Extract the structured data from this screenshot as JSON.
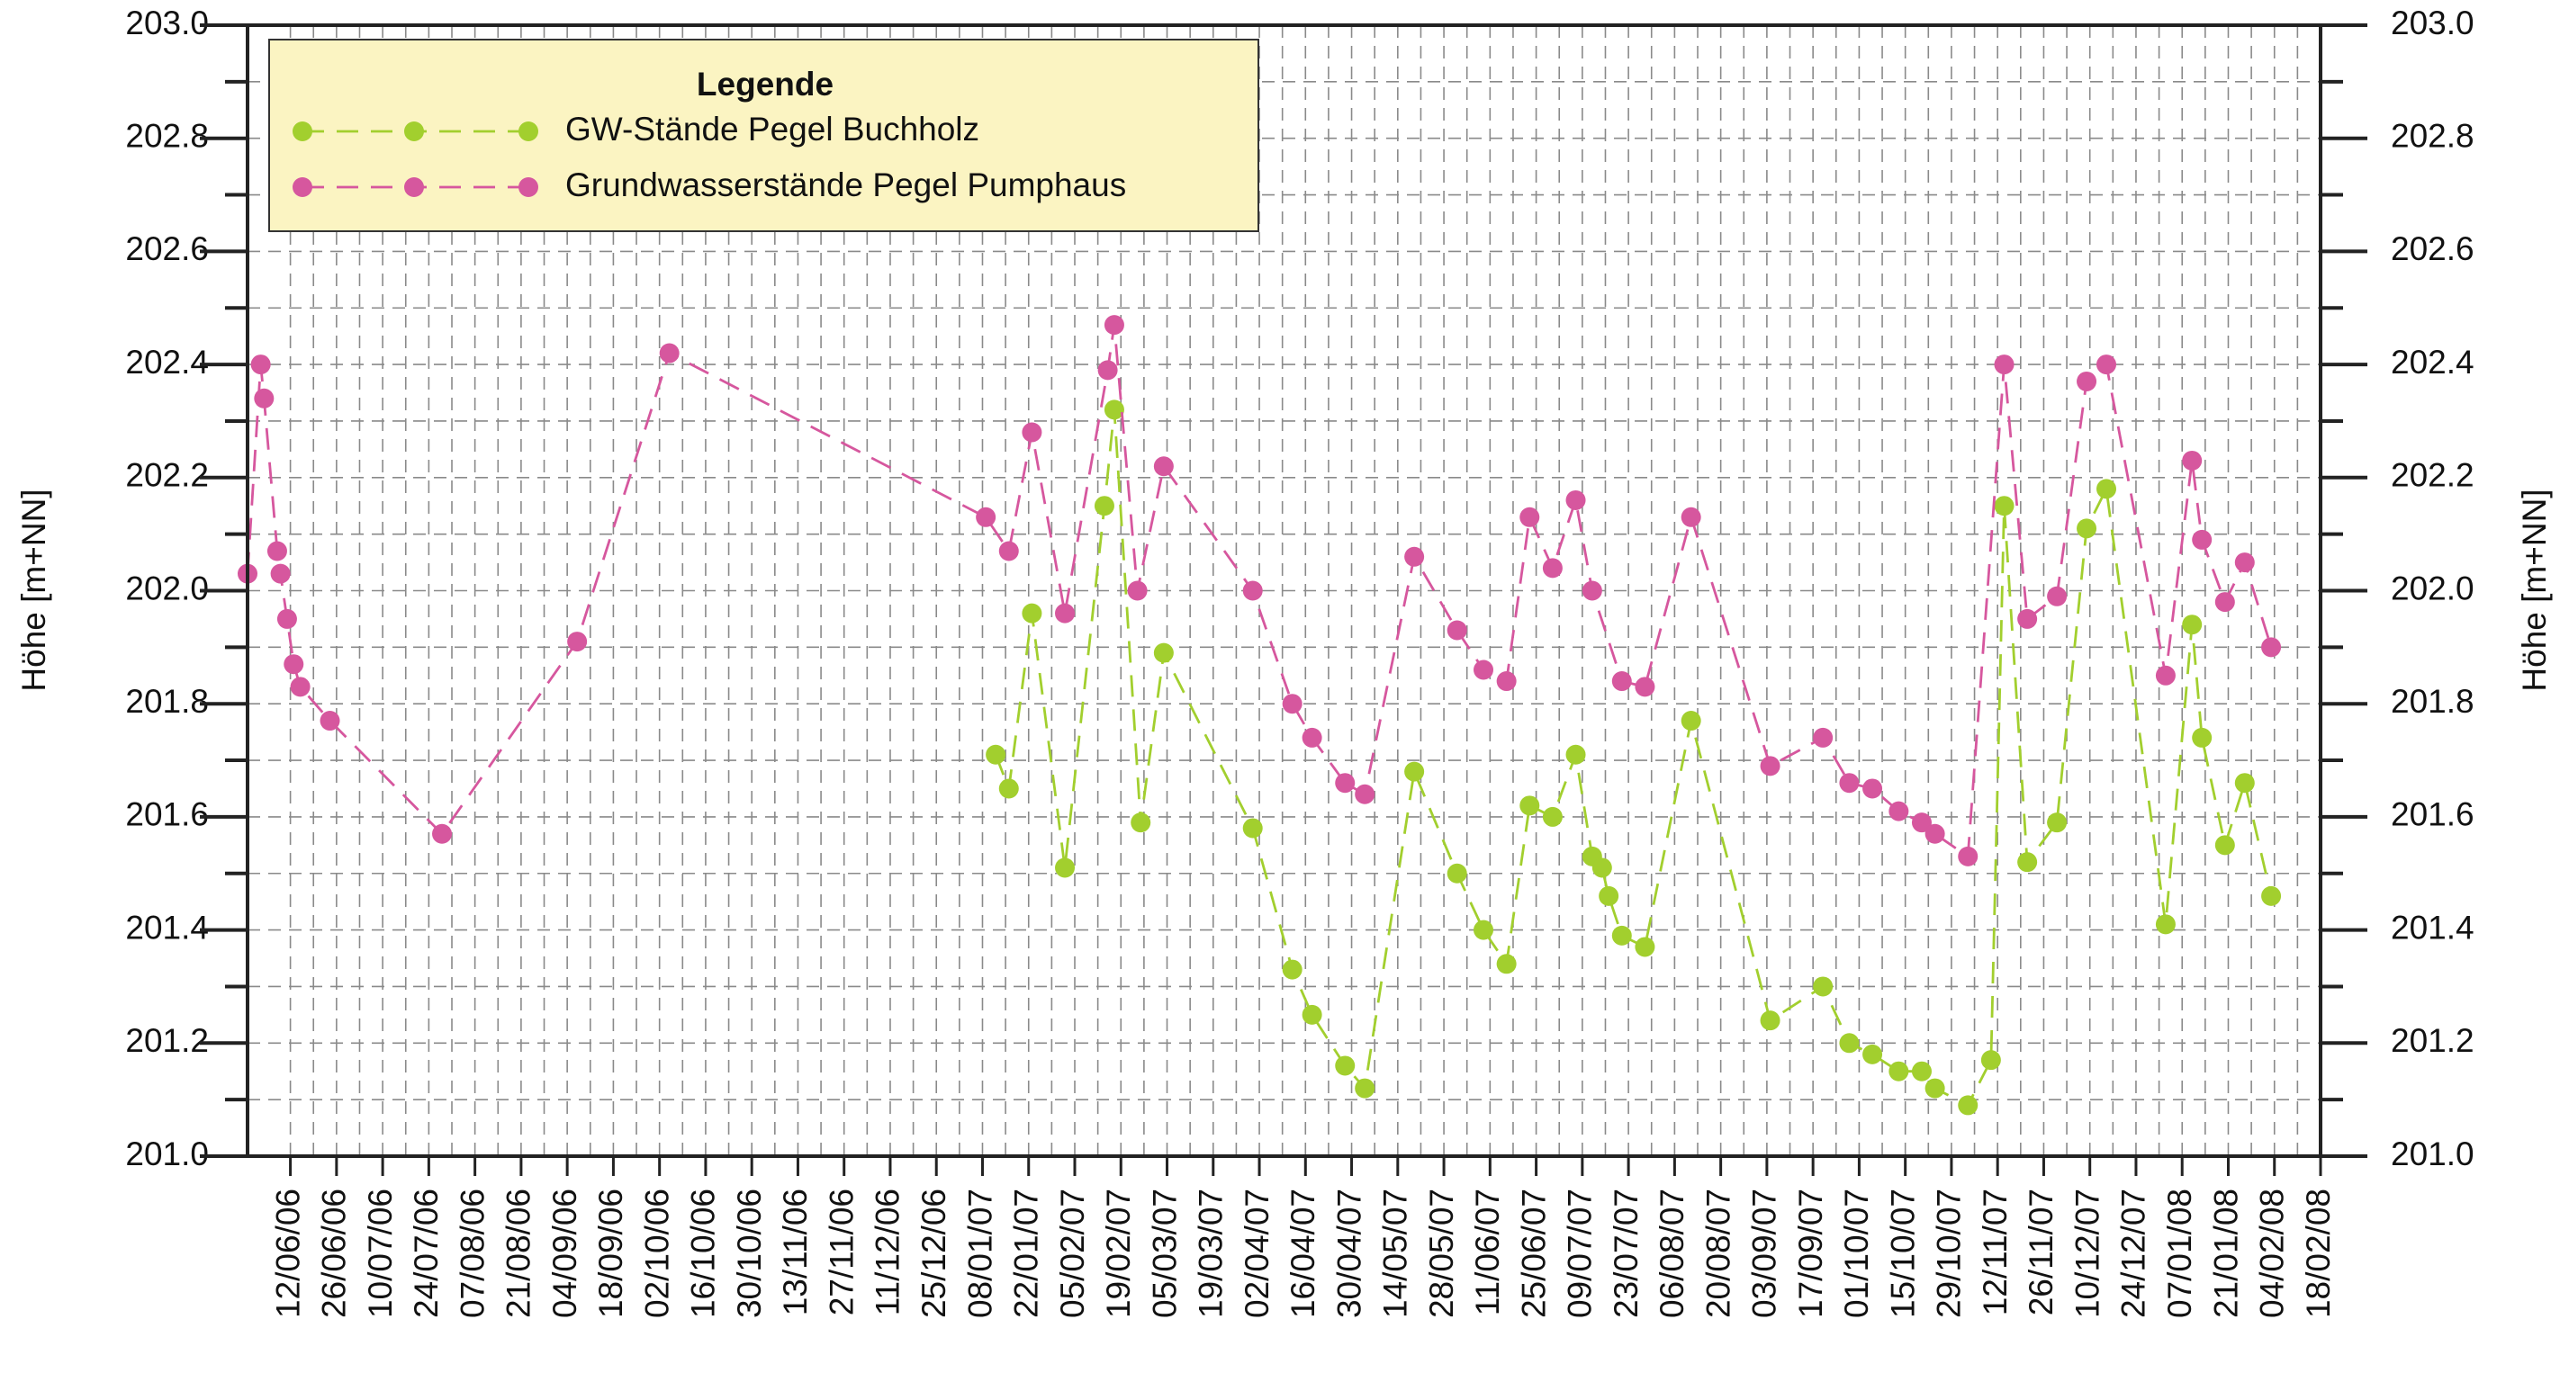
{
  "chart_data": {
    "type": "line",
    "legend_title": "Legende",
    "ylabel": "Höhe [m+NN]",
    "y2label": "Höhe [m+NN]",
    "xlim": [
      "30/05/06",
      "18/02/08"
    ],
    "xticks": [
      "12/06/06",
      "26/06/06",
      "10/07/06",
      "24/07/06",
      "07/08/06",
      "21/08/06",
      "04/09/06",
      "18/09/06",
      "02/10/06",
      "16/10/06",
      "30/10/06",
      "13/11/06",
      "27/11/06",
      "11/12/06",
      "25/12/06",
      "08/01/07",
      "22/01/07",
      "05/02/07",
      "19/02/07",
      "05/03/07",
      "19/03/07",
      "02/04/07",
      "16/04/07",
      "30/04/07",
      "14/05/07",
      "28/05/07",
      "11/06/07",
      "25/06/07",
      "09/07/07",
      "23/07/07",
      "06/08/07",
      "20/08/07",
      "03/09/07",
      "17/09/07",
      "01/10/07",
      "15/10/07",
      "29/10/07",
      "12/11/07",
      "26/11/07",
      "10/12/07",
      "24/12/07",
      "07/01/08",
      "21/01/08",
      "04/02/08",
      "18/02/08"
    ],
    "ylim": [
      201.0,
      203.0
    ],
    "yticks": [
      {
        "value": 201.0,
        "label": "201.0"
      },
      201.2,
      201.4,
      201.6,
      201.8,
      {
        "value": 202.0,
        "label": "202.0"
      },
      202.2,
      202.4,
      202.6,
      202.8,
      {
        "value": 203.0,
        "label": "203.0"
      }
    ],
    "y2lim": [
      201.0,
      203.0
    ],
    "y2ticks": [
      {
        "value": 201.0,
        "label": "201.0"
      },
      201.2,
      201.4,
      201.6,
      201.8,
      {
        "value": 202.0,
        "label": "202.0"
      },
      202.2,
      202.4,
      202.6,
      202.8,
      {
        "value": 203.0,
        "label": "203.0"
      }
    ],
    "grid": true,
    "legend": "upper left",
    "series": [
      {
        "name": "GW-Stände Pegel Buchholz",
        "color": "#a2cf2e",
        "x": [
          "12/01/07",
          "16/01/07",
          "23/01/07",
          "02/02/07",
          "14/02/07",
          "17/02/07",
          "25/02/07",
          "04/03/07",
          "31/03/07",
          "12/04/07",
          "18/04/07",
          "28/04/07",
          "04/05/07",
          "19/05/07",
          "01/06/07",
          "09/06/07",
          "16/06/07",
          "23/06/07",
          "30/06/07",
          "07/07/07",
          "12/07/07",
          "15/07/07",
          "17/07/07",
          "21/07/07",
          "28/07/07",
          "11/08/07",
          "04/09/07",
          "20/09/07",
          "28/09/07",
          "05/10/07",
          "13/10/07",
          "20/10/07",
          "24/10/07",
          "03/11/07",
          "10/11/07",
          "14/11/07",
          "21/11/07",
          "30/11/07",
          "09/12/07",
          "15/12/07",
          "02/01/08",
          "10/01/08",
          "13/01/08",
          "20/01/08",
          "26/01/08",
          "03/02/08"
        ],
        "values": [
          201.71,
          201.65,
          201.96,
          201.51,
          202.15,
          202.32,
          201.59,
          201.89,
          201.58,
          201.33,
          201.25,
          201.16,
          201.12,
          201.68,
          201.5,
          201.4,
          201.34,
          201.62,
          201.6,
          201.71,
          201.53,
          201.51,
          201.46,
          201.39,
          201.37,
          201.77,
          201.24,
          201.3,
          201.2,
          201.18,
          201.15,
          201.15,
          201.12,
          201.09,
          201.17,
          202.15,
          201.52,
          201.59,
          202.11,
          202.18,
          201.41,
          201.94,
          201.74,
          201.55,
          201.66,
          201.46
        ]
      },
      {
        "name": "Grundwasserstände Pegel Pumphaus",
        "color": "#d6579e",
        "x": [
          "30/05/06",
          "03/06/06",
          "04/06/06",
          "08/06/06",
          "09/06/06",
          "11/06/06",
          "13/06/06",
          "15/06/06",
          "24/06/06",
          "28/07/06",
          "07/09/06",
          "05/10/06",
          "09/01/07",
          "16/01/07",
          "23/01/07",
          "02/02/07",
          "15/02/07",
          "17/02/07",
          "24/02/07",
          "04/03/07",
          "31/03/07",
          "12/04/07",
          "18/04/07",
          "28/04/07",
          "04/05/07",
          "19/05/07",
          "01/06/07",
          "09/06/07",
          "16/06/07",
          "23/06/07",
          "30/06/07",
          "07/07/07",
          "12/07/07",
          "21/07/07",
          "28/07/07",
          "11/08/07",
          "04/09/07",
          "20/09/07",
          "28/09/07",
          "05/10/07",
          "13/10/07",
          "20/10/07",
          "24/10/07",
          "03/11/07",
          "14/11/07",
          "21/11/07",
          "30/11/07",
          "09/12/07",
          "15/12/07",
          "02/01/08",
          "10/01/08",
          "13/01/08",
          "20/01/08",
          "26/01/08",
          "03/02/08"
        ],
        "values": [
          202.03,
          202.4,
          202.34,
          202.07,
          202.03,
          201.95,
          201.87,
          201.83,
          201.77,
          201.57,
          201.91,
          202.42,
          202.13,
          202.07,
          202.28,
          201.96,
          202.39,
          202.47,
          202.0,
          202.22,
          202.0,
          201.8,
          201.74,
          201.66,
          201.64,
          202.06,
          201.93,
          201.86,
          201.84,
          202.13,
          202.04,
          202.16,
          202.0,
          201.84,
          201.83,
          202.13,
          201.69,
          201.74,
          201.66,
          201.65,
          201.61,
          201.59,
          201.57,
          201.53,
          202.4,
          201.95,
          201.99,
          202.37,
          202.4,
          201.85,
          202.23,
          202.09,
          201.98,
          202.05,
          201.9
        ]
      }
    ]
  }
}
